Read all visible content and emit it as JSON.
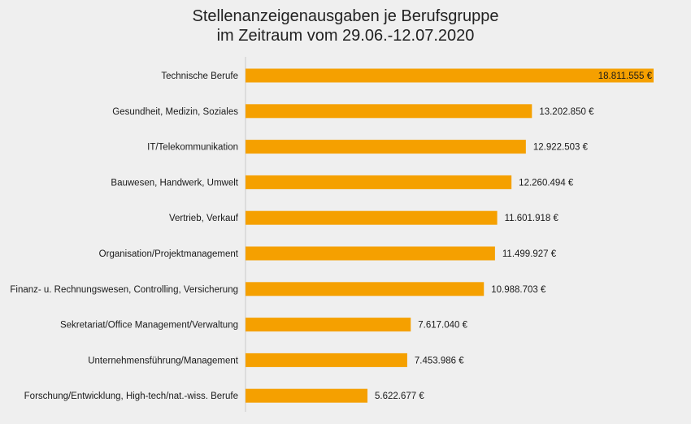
{
  "chart_data": {
    "type": "bar",
    "orientation": "horizontal",
    "title_lines": [
      "Stellenanzeigenausgaben je Berufsgruppe",
      "im Zeitraum vom 29.06.-12.07.2020"
    ],
    "categories": [
      "Technische Berufe",
      "Gesundheit, Medizin, Soziales",
      "IT/Telekommunikation",
      "Bauwesen, Handwerk, Umwelt",
      "Vertrieb, Verkauf",
      "Organisation/Projektmanagement",
      "Finanz- u. Rechnungswesen, Controlling, Versicherung",
      "Sekretariat/Office Management/Verwaltung",
      "Unternehmensführung/Management",
      "Forschung/Entwicklung, High-tech/nat.-wiss. Berufe"
    ],
    "values": [
      18811555,
      13202850,
      12922503,
      12260494,
      11601918,
      11499927,
      10988703,
      7617040,
      7453986,
      5622677
    ],
    "value_labels": [
      "18.811.555 €",
      "13.202.850 €",
      "12.922.503 €",
      "12.260.494 €",
      "11.601.918 €",
      "11.499.927 €",
      "10.988.703 €",
      "7.617.040 €",
      "7.453.986 €",
      "5.622.677 €"
    ],
    "xlim": [
      0,
      18811555
    ],
    "grid": false,
    "legend": "none",
    "bar_color": "#f5a000",
    "axis_color": "#c8c8c8"
  }
}
